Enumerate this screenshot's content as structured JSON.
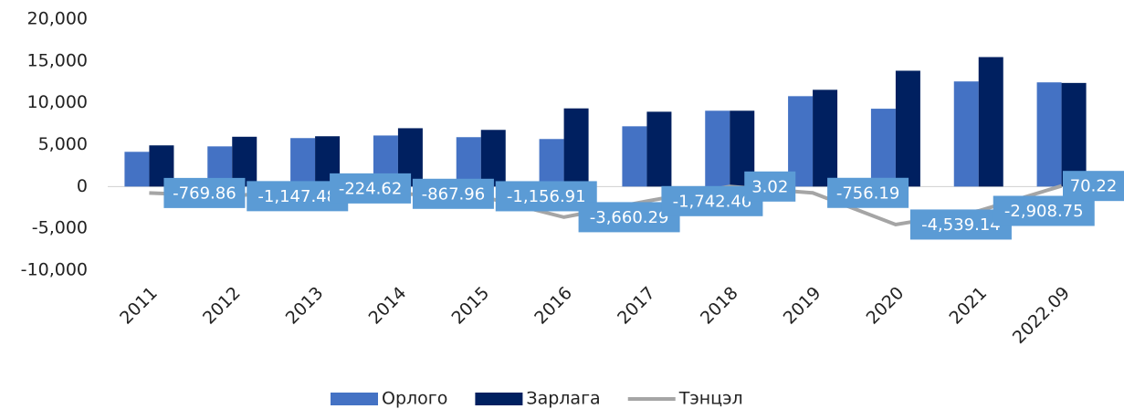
{
  "chart_data": {
    "type": "bar-line",
    "categories": [
      "2011",
      "2012",
      "2013",
      "2014",
      "2015",
      "2016",
      "2017",
      "2018",
      "2019",
      "2020",
      "2021",
      "2022.09"
    ],
    "series": [
      {
        "name": "Орлого",
        "type": "bar",
        "color": "#4472c4",
        "values": [
          4150,
          4800,
          5790,
          6100,
          5900,
          5680,
          7200,
          9060,
          10800,
          9300,
          12560,
          12450
        ]
      },
      {
        "name": "Зарлага",
        "type": "bar",
        "color": "#002060",
        "values": [
          4920,
          5950,
          6010,
          6970,
          6770,
          9340,
          8940,
          9060,
          11560,
          13840,
          15470,
          12380
        ]
      },
      {
        "name": "Тэнцэл",
        "type": "line",
        "color": "#a5a5a5",
        "values": [
          -769.86,
          -1147.48,
          -224.62,
          -867.96,
          -1156.91,
          -3660.29,
          -1742.46,
          3.02,
          -756.19,
          -4539.14,
          -2908.75,
          70.22
        ],
        "value_labels": [
          "-769.86",
          "-1,147.48",
          "-224.62",
          "-867.96",
          "-1,156.91",
          "-3,660.29",
          "-1,742.46",
          "3.02",
          "-756.19",
          "-4,539.14",
          "-2,908.75",
          "70.22"
        ]
      }
    ],
    "ylim": [
      -10000,
      20000
    ],
    "yticks": [
      {
        "value": -10000,
        "label": "-10,000"
      },
      {
        "value": -5000,
        "label": "-5,000"
      },
      0,
      {
        "value": 5000,
        "label": "5,000"
      },
      {
        "value": 10000,
        "label": "10,000"
      },
      {
        "value": 15000,
        "label": "15,000"
      },
      {
        "value": 20000,
        "label": "20,000"
      }
    ],
    "legend": "bottom"
  }
}
